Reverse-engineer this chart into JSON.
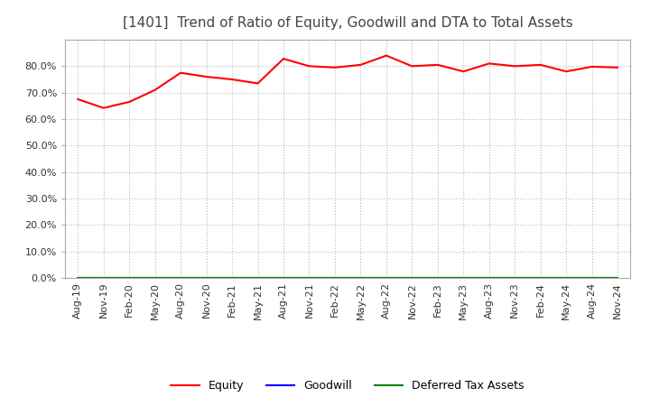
{
  "title": "[1401]  Trend of Ratio of Equity, Goodwill and DTA to Total Assets",
  "title_fontsize": 11,
  "title_color": "#444444",
  "series": {
    "Equity": {
      "color": "#FF0000",
      "values": [
        0.675,
        0.642,
        0.665,
        0.71,
        0.775,
        0.76,
        0.75,
        0.735,
        0.828,
        0.8,
        0.795,
        0.805,
        0.84,
        0.8,
        0.805,
        0.78,
        0.81,
        0.8,
        0.805,
        0.78,
        0.798,
        0.795
      ]
    },
    "Goodwill": {
      "color": "#0000FF",
      "values": [
        0.0,
        0.0,
        0.0,
        0.0,
        0.0,
        0.0,
        0.0,
        0.0,
        0.0,
        0.0,
        0.0,
        0.0,
        0.0,
        0.0,
        0.0,
        0.0,
        0.0,
        0.0,
        0.0,
        0.0,
        0.0,
        0.0
      ]
    },
    "Deferred Tax Assets": {
      "color": "#008000",
      "values": [
        0.0,
        0.0,
        0.0,
        0.0,
        0.0,
        0.0,
        0.0,
        0.0,
        0.0,
        0.0,
        0.0,
        0.0,
        0.0,
        0.0,
        0.0,
        0.0,
        0.0,
        0.0,
        0.0,
        0.0,
        0.0,
        0.0
      ]
    }
  },
  "x_labels": [
    "Aug-19",
    "Nov-19",
    "Feb-20",
    "May-20",
    "Aug-20",
    "Nov-20",
    "Feb-21",
    "May-21",
    "Aug-21",
    "Nov-21",
    "Feb-22",
    "May-22",
    "Aug-22",
    "Nov-22",
    "Feb-23",
    "May-23",
    "Aug-23",
    "Nov-23",
    "Feb-24",
    "May-24",
    "Aug-24",
    "Nov-24"
  ],
  "ylim": [
    0.0,
    0.9
  ],
  "yticks": [
    0.0,
    0.1,
    0.2,
    0.3,
    0.4,
    0.5,
    0.6,
    0.7,
    0.8
  ],
  "background_color": "#FFFFFF",
  "grid_color": "#BBBBBB",
  "linewidth": 1.5,
  "tick_fontsize": 8,
  "legend_fontsize": 9
}
